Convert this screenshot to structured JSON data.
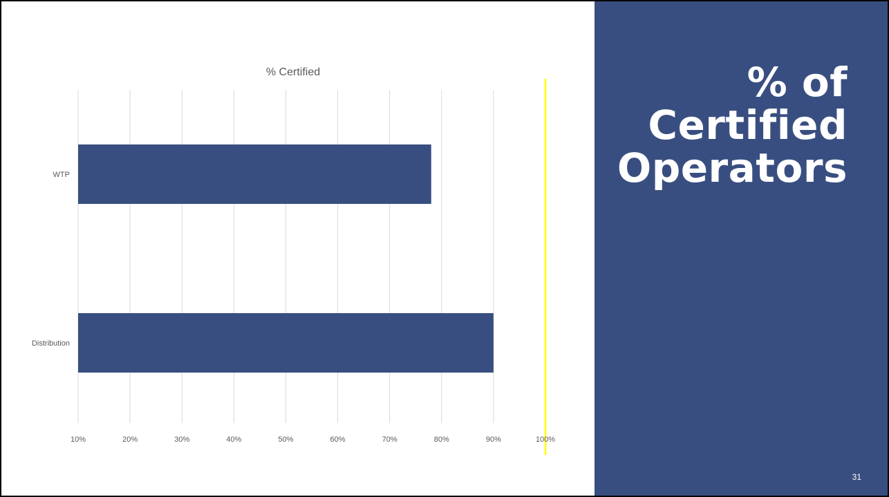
{
  "slide": {
    "heading": "% of\nCertified\nOperators",
    "number": "31"
  },
  "chart_data": {
    "type": "bar",
    "orientation": "horizontal",
    "title": "% Certified",
    "xlabel": "",
    "ylabel": "",
    "categories": [
      "WTP",
      "Distribution"
    ],
    "values": [
      78,
      90
    ],
    "xlim": [
      10,
      100
    ],
    "ticks": [
      "10%",
      "20%",
      "30%",
      "40%",
      "50%",
      "60%",
      "70%",
      "80%",
      "90%",
      "100%"
    ],
    "reference_line": {
      "value": 100,
      "color": "#ffff00"
    },
    "bar_color": "#394e80",
    "grid": true,
    "legend": "none"
  },
  "colors": {
    "panel": "#394e80",
    "bar": "#394e80",
    "grid": "#d9d9d9",
    "reference": "#ffff00",
    "text": "#595959"
  }
}
